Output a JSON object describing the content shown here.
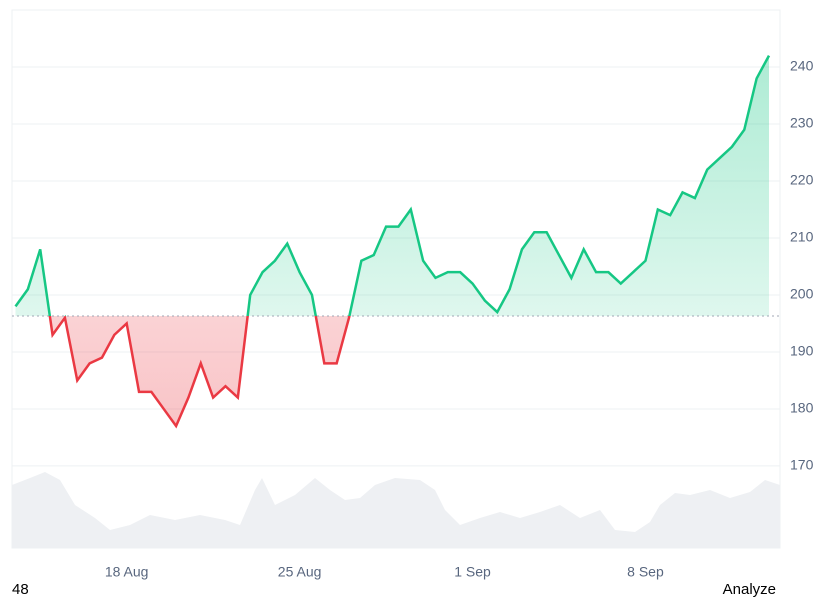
{
  "chart_data": {
    "type": "line",
    "categories": [
      null,
      null,
      null,
      null,
      null,
      null,
      null,
      null,
      null,
      "18 Aug",
      null,
      null,
      null,
      null,
      null,
      null,
      null,
      null,
      null,
      null,
      null,
      null,
      null,
      "25 Aug",
      null,
      null,
      null,
      null,
      null,
      null,
      null,
      null,
      null,
      null,
      null,
      null,
      null,
      "1 Sep",
      null,
      null,
      null,
      null,
      null,
      null,
      null,
      null,
      null,
      null,
      null,
      null,
      null,
      "8 Sep",
      null,
      null,
      null,
      null,
      null,
      null,
      null,
      null,
      null,
      null
    ],
    "series": [
      {
        "color": "#16c784",
        "below_color": "#ea3943",
        "values": [
          198,
          201,
          208,
          193,
          196,
          185,
          188,
          189,
          193,
          195,
          183,
          183,
          180,
          177,
          182,
          188,
          182,
          184,
          182,
          200,
          204,
          206,
          209,
          204,
          200,
          188,
          188,
          196,
          206,
          207,
          212,
          212,
          215,
          206,
          203,
          204,
          204,
          202,
          199,
          197,
          201,
          208,
          211,
          211,
          207,
          203,
          208,
          204,
          204,
          202,
          204,
          206,
          215,
          214,
          218,
          217,
          222,
          224,
          226,
          229,
          238,
          242
        ]
      }
    ],
    "baseline": 196.3,
    "ylim": [
      155.6,
      250
    ],
    "yticks": [
      170,
      180,
      190,
      200,
      210,
      220,
      230,
      240
    ],
    "grid": true
  },
  "footer": {
    "left": "48",
    "right": "Analyze"
  }
}
